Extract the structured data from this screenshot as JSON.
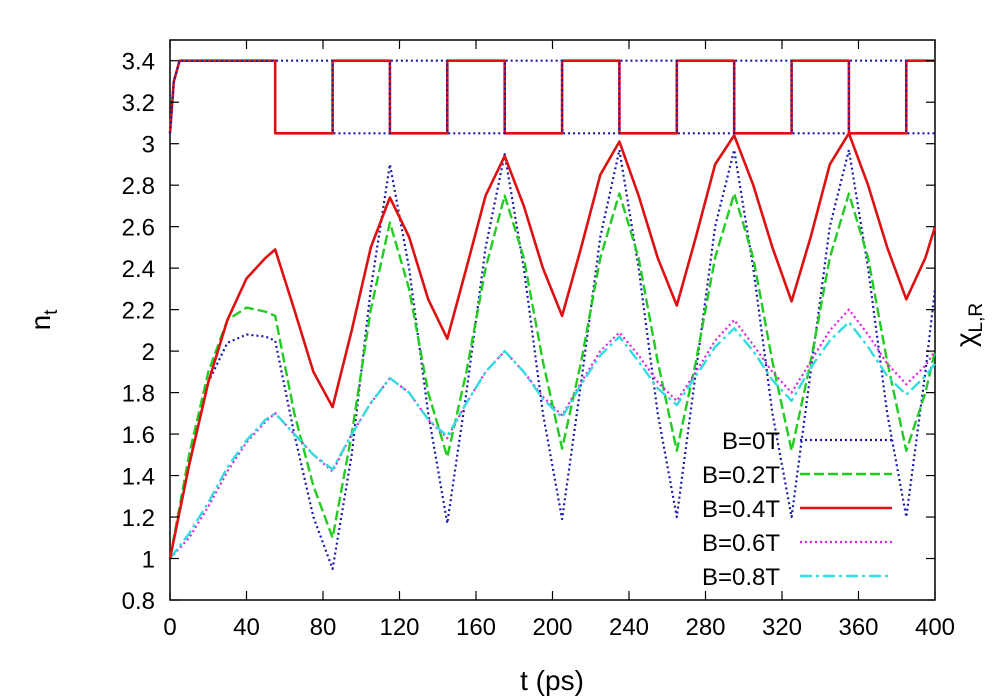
{
  "chart_data": {
    "type": "line",
    "xlabel": "t (ps)",
    "ylabel": "n",
    "ylabel_sub": "t",
    "y2label": "χ",
    "y2label_sub": "L,R",
    "xlim": [
      0,
      400
    ],
    "ylim": [
      0.8,
      3.5
    ],
    "x_ticks": [
      0,
      40,
      80,
      120,
      160,
      200,
      240,
      280,
      320,
      360,
      400
    ],
    "y_ticks": [
      0.8,
      1,
      1.2,
      1.4,
      1.6,
      1.8,
      2,
      2.2,
      2.4,
      2.6,
      2.8,
      3,
      3.2,
      3.4
    ],
    "grid": false,
    "legend_position": "bottom-right",
    "series": [
      {
        "name": "B=0T",
        "color": "#1a1aaa",
        "style": "dotted",
        "points": [
          [
            0,
            1.0
          ],
          [
            10,
            1.45
          ],
          [
            20,
            1.85
          ],
          [
            30,
            2.04
          ],
          [
            40,
            2.08
          ],
          [
            50,
            2.07
          ],
          [
            55,
            2.05
          ],
          [
            65,
            1.6
          ],
          [
            75,
            1.2
          ],
          [
            85,
            0.95
          ],
          [
            95,
            1.5
          ],
          [
            105,
            2.3
          ],
          [
            115,
            2.9
          ],
          [
            125,
            2.4
          ],
          [
            135,
            1.7
          ],
          [
            145,
            1.17
          ],
          [
            155,
            1.8
          ],
          [
            165,
            2.5
          ],
          [
            175,
            2.95
          ],
          [
            185,
            2.4
          ],
          [
            195,
            1.7
          ],
          [
            205,
            1.19
          ],
          [
            215,
            1.85
          ],
          [
            225,
            2.55
          ],
          [
            235,
            2.97
          ],
          [
            245,
            2.4
          ],
          [
            255,
            1.7
          ],
          [
            265,
            1.2
          ],
          [
            275,
            1.9
          ],
          [
            285,
            2.6
          ],
          [
            295,
            2.97
          ],
          [
            305,
            2.4
          ],
          [
            315,
            1.7
          ],
          [
            325,
            1.2
          ],
          [
            335,
            1.9
          ],
          [
            345,
            2.6
          ],
          [
            355,
            2.97
          ],
          [
            365,
            2.4
          ],
          [
            375,
            1.7
          ],
          [
            385,
            1.2
          ],
          [
            395,
            1.9
          ],
          [
            400,
            2.3
          ]
        ]
      },
      {
        "name": "B=0.2T",
        "color": "#22cc22",
        "style": "dashed",
        "points": [
          [
            0,
            1.0
          ],
          [
            10,
            1.5
          ],
          [
            20,
            1.9
          ],
          [
            30,
            2.15
          ],
          [
            40,
            2.21
          ],
          [
            50,
            2.19
          ],
          [
            55,
            2.17
          ],
          [
            65,
            1.7
          ],
          [
            75,
            1.35
          ],
          [
            85,
            1.1
          ],
          [
            95,
            1.6
          ],
          [
            105,
            2.2
          ],
          [
            115,
            2.62
          ],
          [
            125,
            2.3
          ],
          [
            135,
            1.8
          ],
          [
            145,
            1.49
          ],
          [
            155,
            1.9
          ],
          [
            165,
            2.4
          ],
          [
            175,
            2.75
          ],
          [
            185,
            2.45
          ],
          [
            195,
            1.95
          ],
          [
            205,
            1.53
          ],
          [
            215,
            1.95
          ],
          [
            225,
            2.45
          ],
          [
            235,
            2.76
          ],
          [
            245,
            2.45
          ],
          [
            255,
            1.95
          ],
          [
            265,
            1.52
          ],
          [
            275,
            1.95
          ],
          [
            285,
            2.45
          ],
          [
            295,
            2.76
          ],
          [
            305,
            2.45
          ],
          [
            315,
            1.95
          ],
          [
            325,
            1.52
          ],
          [
            335,
            1.95
          ],
          [
            345,
            2.45
          ],
          [
            355,
            2.76
          ],
          [
            365,
            2.45
          ],
          [
            375,
            1.95
          ],
          [
            385,
            1.52
          ],
          [
            395,
            1.8
          ],
          [
            400,
            2.0
          ]
        ]
      },
      {
        "name": "B=0.4T",
        "color": "#dd1111",
        "style": "solid",
        "points": [
          [
            0,
            1.0
          ],
          [
            10,
            1.45
          ],
          [
            20,
            1.85
          ],
          [
            30,
            2.15
          ],
          [
            40,
            2.35
          ],
          [
            50,
            2.45
          ],
          [
            55,
            2.49
          ],
          [
            65,
            2.2
          ],
          [
            75,
            1.9
          ],
          [
            85,
            1.73
          ],
          [
            95,
            2.1
          ],
          [
            105,
            2.5
          ],
          [
            115,
            2.74
          ],
          [
            125,
            2.55
          ],
          [
            135,
            2.25
          ],
          [
            145,
            2.06
          ],
          [
            155,
            2.4
          ],
          [
            165,
            2.75
          ],
          [
            175,
            2.94
          ],
          [
            185,
            2.7
          ],
          [
            195,
            2.4
          ],
          [
            205,
            2.17
          ],
          [
            215,
            2.5
          ],
          [
            225,
            2.85
          ],
          [
            235,
            3.01
          ],
          [
            245,
            2.75
          ],
          [
            255,
            2.45
          ],
          [
            265,
            2.22
          ],
          [
            275,
            2.55
          ],
          [
            285,
            2.9
          ],
          [
            295,
            3.04
          ],
          [
            305,
            2.8
          ],
          [
            315,
            2.5
          ],
          [
            325,
            2.24
          ],
          [
            335,
            2.55
          ],
          [
            345,
            2.9
          ],
          [
            355,
            3.05
          ],
          [
            365,
            2.8
          ],
          [
            375,
            2.5
          ],
          [
            385,
            2.25
          ],
          [
            395,
            2.45
          ],
          [
            400,
            2.6
          ]
        ]
      },
      {
        "name": "B=0.6T",
        "color": "#dd22dd",
        "style": "dotted",
        "points": [
          [
            0,
            1.0
          ],
          [
            10,
            1.1
          ],
          [
            20,
            1.25
          ],
          [
            30,
            1.42
          ],
          [
            40,
            1.56
          ],
          [
            50,
            1.66
          ],
          [
            55,
            1.7
          ],
          [
            65,
            1.6
          ],
          [
            75,
            1.5
          ],
          [
            85,
            1.42
          ],
          [
            95,
            1.6
          ],
          [
            105,
            1.75
          ],
          [
            115,
            1.87
          ],
          [
            125,
            1.8
          ],
          [
            135,
            1.67
          ],
          [
            145,
            1.58
          ],
          [
            155,
            1.75
          ],
          [
            165,
            1.9
          ],
          [
            175,
            2.0
          ],
          [
            185,
            1.9
          ],
          [
            195,
            1.78
          ],
          [
            205,
            1.69
          ],
          [
            215,
            1.85
          ],
          [
            225,
            2.0
          ],
          [
            235,
            2.09
          ],
          [
            245,
            1.98
          ],
          [
            255,
            1.85
          ],
          [
            265,
            1.76
          ],
          [
            275,
            1.9
          ],
          [
            285,
            2.05
          ],
          [
            295,
            2.15
          ],
          [
            305,
            2.03
          ],
          [
            315,
            1.9
          ],
          [
            325,
            1.8
          ],
          [
            335,
            1.95
          ],
          [
            345,
            2.1
          ],
          [
            355,
            2.2
          ],
          [
            365,
            2.08
          ],
          [
            375,
            1.94
          ],
          [
            385,
            1.84
          ],
          [
            395,
            1.93
          ],
          [
            400,
            2.0
          ]
        ]
      },
      {
        "name": "B=0.8T",
        "color": "#33dddd",
        "style": "dashdot",
        "points": [
          [
            0,
            1.0
          ],
          [
            10,
            1.12
          ],
          [
            20,
            1.27
          ],
          [
            30,
            1.44
          ],
          [
            40,
            1.57
          ],
          [
            50,
            1.67
          ],
          [
            55,
            1.7
          ],
          [
            65,
            1.6
          ],
          [
            75,
            1.5
          ],
          [
            85,
            1.43
          ],
          [
            95,
            1.6
          ],
          [
            105,
            1.75
          ],
          [
            115,
            1.87
          ],
          [
            125,
            1.8
          ],
          [
            135,
            1.67
          ],
          [
            145,
            1.59
          ],
          [
            155,
            1.75
          ],
          [
            165,
            1.9
          ],
          [
            175,
            2.0
          ],
          [
            185,
            1.9
          ],
          [
            195,
            1.77
          ],
          [
            205,
            1.68
          ],
          [
            215,
            1.84
          ],
          [
            225,
            1.98
          ],
          [
            235,
            2.07
          ],
          [
            245,
            1.95
          ],
          [
            255,
            1.82
          ],
          [
            265,
            1.74
          ],
          [
            275,
            1.88
          ],
          [
            285,
            2.02
          ],
          [
            295,
            2.11
          ],
          [
            305,
            2.0
          ],
          [
            315,
            1.86
          ],
          [
            325,
            1.76
          ],
          [
            335,
            1.92
          ],
          [
            345,
            2.05
          ],
          [
            355,
            2.14
          ],
          [
            365,
            2.02
          ],
          [
            375,
            1.88
          ],
          [
            385,
            1.79
          ],
          [
            395,
            1.88
          ],
          [
            400,
            1.94
          ]
        ]
      },
      {
        "name": "",
        "color": "#dd1111",
        "style": "solid",
        "points": [
          [
            0,
            3.05
          ],
          [
            2,
            3.3
          ],
          [
            5,
            3.4
          ],
          [
            55,
            3.4
          ],
          [
            55,
            3.05
          ],
          [
            85,
            3.05
          ],
          [
            85,
            3.4
          ],
          [
            115,
            3.4
          ],
          [
            115,
            3.05
          ],
          [
            145,
            3.05
          ],
          [
            145,
            3.4
          ],
          [
            175,
            3.4
          ],
          [
            175,
            3.05
          ],
          [
            205,
            3.05
          ],
          [
            205,
            3.4
          ],
          [
            235,
            3.4
          ],
          [
            235,
            3.05
          ],
          [
            265,
            3.05
          ],
          [
            265,
            3.4
          ],
          [
            295,
            3.4
          ],
          [
            295,
            3.05
          ],
          [
            325,
            3.05
          ],
          [
            325,
            3.4
          ],
          [
            355,
            3.4
          ],
          [
            355,
            3.05
          ],
          [
            385,
            3.05
          ],
          [
            385,
            3.4
          ],
          [
            400,
            3.4
          ]
        ]
      },
      {
        "name": "",
        "color": "#1a1aaa",
        "style": "dotted",
        "points": [
          [
            0,
            3.05
          ],
          [
            2,
            3.3
          ],
          [
            5,
            3.4
          ],
          [
            85,
            3.4
          ],
          [
            85,
            3.05
          ],
          [
            115,
            3.05
          ],
          [
            115,
            3.4
          ],
          [
            145,
            3.4
          ],
          [
            145,
            3.05
          ],
          [
            175,
            3.05
          ],
          [
            175,
            3.4
          ],
          [
            205,
            3.4
          ],
          [
            205,
            3.05
          ],
          [
            235,
            3.05
          ],
          [
            235,
            3.4
          ],
          [
            265,
            3.4
          ],
          [
            265,
            3.05
          ],
          [
            295,
            3.05
          ],
          [
            295,
            3.4
          ],
          [
            325,
            3.4
          ],
          [
            325,
            3.05
          ],
          [
            355,
            3.05
          ],
          [
            355,
            3.4
          ],
          [
            385,
            3.4
          ],
          [
            385,
            3.05
          ],
          [
            400,
            3.05
          ]
        ]
      }
    ]
  }
}
